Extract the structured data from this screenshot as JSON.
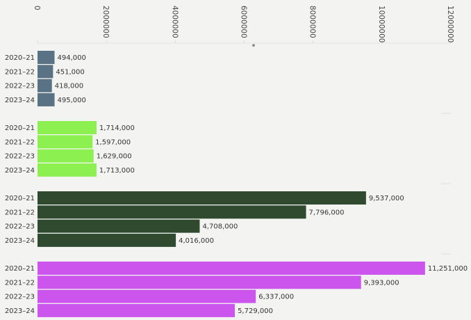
{
  "chart_data": {
    "type": "grouped-hbar",
    "xlabel": "*",
    "categories": [
      "2020–21",
      "2021–22",
      "2022–23",
      "2023–24"
    ],
    "series": [
      {
        "color": "#5a7384",
        "values": [
          494000,
          451000,
          418000,
          495000
        ],
        "value_labels": [
          "494,000",
          "451,000",
          "418,000",
          "495,000"
        ]
      },
      {
        "color": "#8cf050",
        "values": [
          1714000,
          1597000,
          1629000,
          1713000
        ],
        "value_labels": [
          "1,714,000",
          "1,597,000",
          "1,629,000",
          "1,713,000"
        ]
      },
      {
        "color": "#2f4a2e",
        "values": [
          9537000,
          7796000,
          4708000,
          4016000
        ],
        "value_labels": [
          "9,537,000",
          "7,796,000",
          "4,708,000",
          "4,016,000"
        ]
      },
      {
        "color": "#cc55ee",
        "values": [
          11251000,
          9393000,
          6337000,
          5729000
        ],
        "value_labels": [
          "11,251,000",
          "9,393,000",
          "6,337,000",
          "5,729,000"
        ]
      }
    ],
    "xlim": [
      0,
      12000000
    ],
    "xticks": [
      0,
      2000000,
      4000000,
      6000000,
      8000000,
      10000000,
      12000000
    ]
  }
}
